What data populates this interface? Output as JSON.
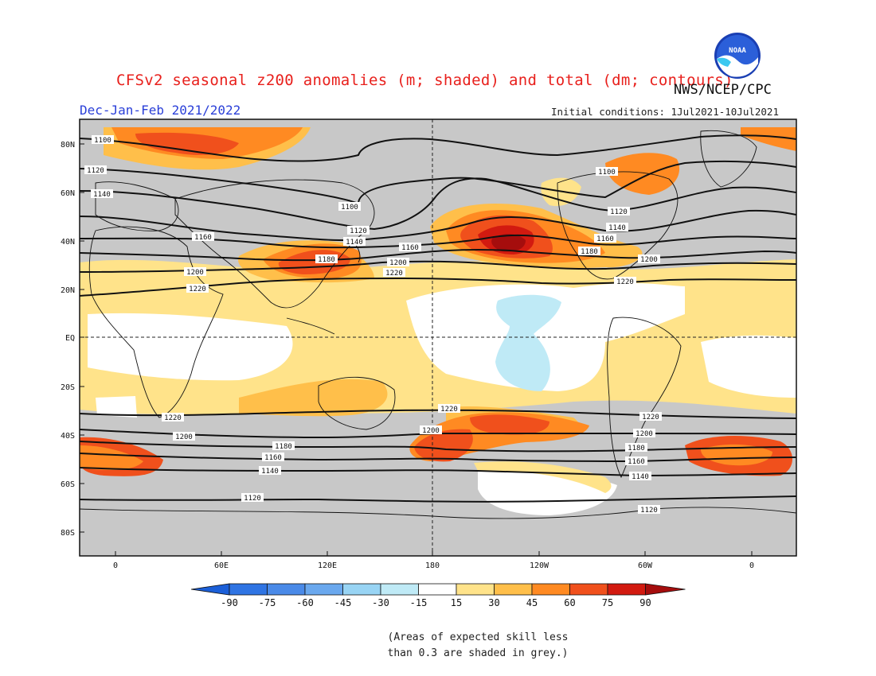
{
  "title": "CFSv2 seasonal z200 anomalies (m; shaded) and total (dm; contours)",
  "season": "Dec-Jan-Feb 2021/2022",
  "agency": "NWS/NCEP/CPC",
  "initial_conditions": "Initial conditions: 1Jul2021-10Jul2021",
  "logo_text": "NOAA",
  "note_line1": "(Areas of expected skill less",
  "note_line2": "than 0.3 are shaded in grey.)",
  "lat_labels": [
    "80N",
    "60N",
    "40N",
    "20N",
    "EQ",
    "20S",
    "40S",
    "60S",
    "80S"
  ],
  "lon_labels": [
    "0",
    "60E",
    "120E",
    "180",
    "120W",
    "60W",
    "0"
  ],
  "colorbar": {
    "labels": [
      "-90",
      "-75",
      "-60",
      "-45",
      "-30",
      "-15",
      "15",
      "30",
      "45",
      "60",
      "75",
      "90"
    ],
    "colors": [
      "#1b5fd8",
      "#2f74e3",
      "#4a8ae8",
      "#6aa8ee",
      "#98d4f4",
      "#bfeaf6",
      "#ffffff",
      "#ffe38a",
      "#ffbf4a",
      "#ff8a22",
      "#f0501c",
      "#d21a10",
      "#a50d0d"
    ]
  },
  "contour_labels": {
    "c1100a": "1100",
    "c1100b": "1100",
    "c1100c": "1100",
    "c1120a": "1120",
    "c1120b": "1120",
    "c1120c": "1120",
    "c1140a": "1140",
    "c1140b": "1140",
    "c1140c": "1140",
    "c1160a": "1160",
    "c1160b": "1160",
    "c1160c": "1160",
    "c1180a": "1180",
    "c1180b": "1180",
    "c1200a": "1200",
    "c1200b": "1200",
    "c1200c": "1200",
    "c1220a": "1220",
    "c1220b": "1220",
    "c1220c": "1220",
    "s1220a": "1220",
    "s1220b": "1220",
    "s1220c": "1220",
    "s1200a": "1200",
    "s1200b": "1200",
    "s1200c": "1200",
    "s1180a": "1180",
    "s1180b": "1180",
    "s1160a": "1160",
    "s1160b": "1160",
    "s1140a": "1140",
    "s1140b": "1140",
    "s1120a": "1120",
    "s1120b": "1120"
  },
  "colors": {
    "title": "#e8201c",
    "season": "#2a3fd8",
    "grey_low_skill": "#c8c8c8"
  }
}
